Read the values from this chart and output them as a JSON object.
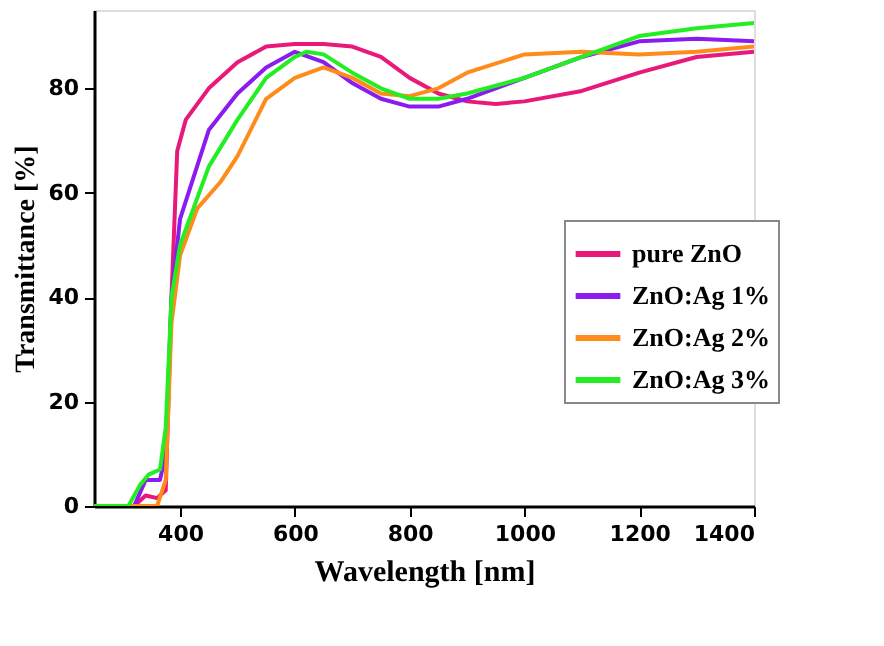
{
  "chart_data": {
    "type": "line",
    "xlabel": "Wavelength [nm]",
    "ylabel": "Transmittance [%]",
    "xlim": [
      250,
      1400
    ],
    "xticks": [
      400,
      600,
      800,
      1000,
      1200,
      1400
    ],
    "ylim": [
      0,
      95
    ],
    "yticks": [
      0,
      20,
      40,
      60,
      80
    ],
    "grid": false,
    "legend": "right",
    "marker": "none",
    "line_style": "solid",
    "series": [
      {
        "name": "pure ZnO",
        "color": "#e8197a",
        "x": [
          250,
          320,
          340,
          360,
          375,
          385,
          395,
          410,
          450,
          500,
          550,
          600,
          650,
          700,
          750,
          800,
          850,
          900,
          950,
          1000,
          1100,
          1200,
          1300,
          1400
        ],
        "values": [
          0,
          0,
          2,
          1.5,
          3,
          40,
          68,
          74,
          80,
          85,
          88,
          88.5,
          88.5,
          88,
          86,
          82,
          79,
          77.5,
          77,
          77.5,
          79.5,
          83,
          86,
          87
        ]
      },
      {
        "name": " ZnO:Ag 1%",
        "color": "#8a1cf0",
        "x": [
          250,
          320,
          340,
          365,
          375,
          385,
          400,
          450,
          500,
          550,
          600,
          650,
          700,
          750,
          800,
          850,
          900,
          1000,
          1100,
          1200,
          1300,
          1400
        ],
        "values": [
          0,
          0,
          5,
          5,
          10,
          40,
          55,
          72,
          79,
          84,
          87,
          85,
          81,
          78,
          76.5,
          76.5,
          78,
          82,
          86,
          89,
          89.5,
          89
        ]
      },
      {
        "name": "ZnO:Ag 2%",
        "color": "#ff8c1a",
        "x": [
          250,
          360,
          375,
          385,
          400,
          430,
          470,
          500,
          550,
          600,
          650,
          700,
          750,
          800,
          850,
          900,
          1000,
          1100,
          1200,
          1300,
          1400
        ],
        "values": [
          0,
          0,
          5,
          35,
          48,
          57,
          62,
          67,
          78,
          82,
          84,
          82,
          79,
          78.5,
          80,
          83,
          86.5,
          87,
          86.5,
          87,
          88
        ]
      },
      {
        "name": "ZnO:Ag 3%",
        "color": "#22ee22",
        "x": [
          250,
          310,
          330,
          345,
          365,
          375,
          385,
          400,
          450,
          500,
          550,
          600,
          620,
          650,
          700,
          750,
          800,
          850,
          900,
          1000,
          1100,
          1200,
          1300,
          1400
        ],
        "values": [
          0,
          0,
          4,
          6,
          7,
          15,
          40,
          50,
          65,
          74,
          82,
          86,
          87,
          86.5,
          83,
          80,
          78,
          78,
          79,
          82,
          86,
          90,
          91.5,
          92.5
        ]
      }
    ]
  }
}
